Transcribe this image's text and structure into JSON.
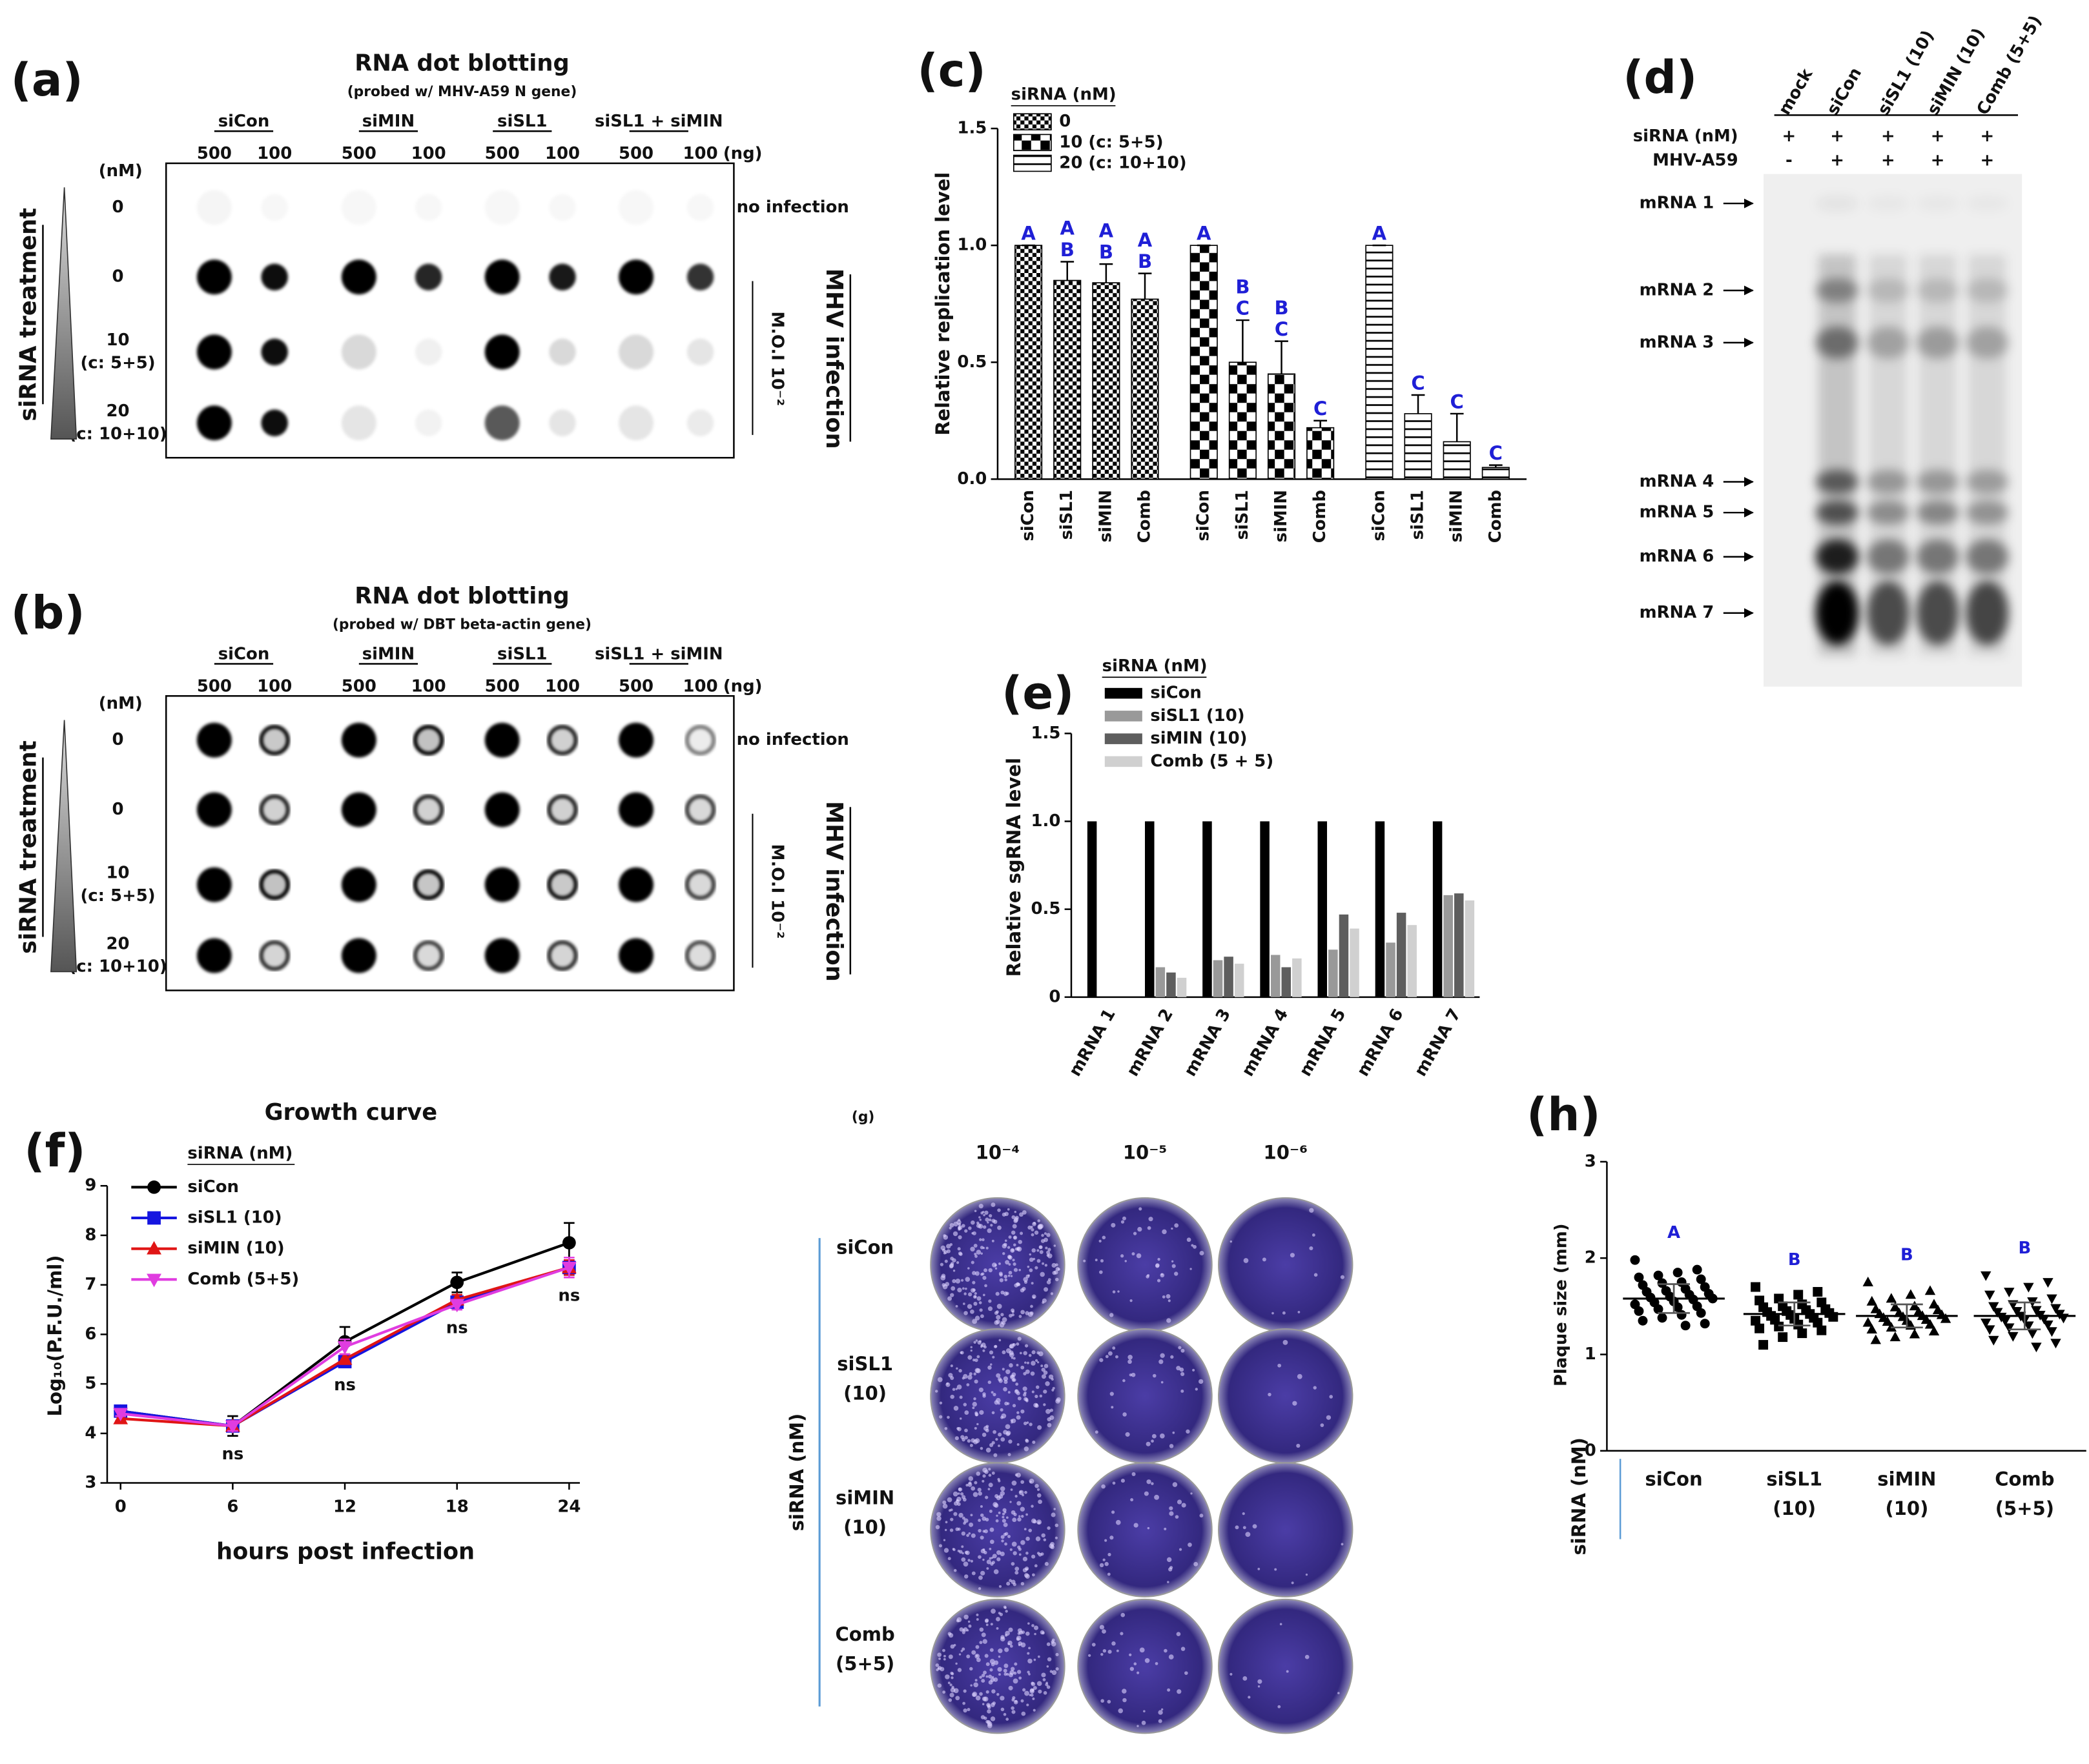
{
  "panel_a": {
    "label": "(a)",
    "title": "RNA dot blotting",
    "subtitle": "(probed w/ MHV-A59 N gene)",
    "groups": [
      "siCon",
      "siMIN",
      "siSL1",
      "siSL1 + siMIN"
    ],
    "amounts": [
      "500",
      "100"
    ],
    "amount_unit": "(ng)",
    "dose_unit": "(nM)",
    "rows": [
      [
        "0"
      ],
      [
        "0"
      ],
      [
        "10",
        "(c: 5+5)"
      ],
      [
        "20",
        "(c: 10+10)"
      ]
    ],
    "no_infection": "no infection",
    "moi": "M.O.I 10⁻²",
    "infection": "MHV infection",
    "treatment": "siRNA treatment"
  },
  "panel_b": {
    "label": "(b)",
    "title": "RNA dot blotting",
    "subtitle": "(probed w/ DBT beta-actin gene)",
    "groups": [
      "siCon",
      "siMIN",
      "siSL1",
      "siSL1 + siMIN"
    ],
    "amounts": [
      "500",
      "100"
    ],
    "amount_unit": "(ng)",
    "dose_unit": "(nM)",
    "rows": [
      [
        "0"
      ],
      [
        "0"
      ],
      [
        "10",
        "(c: 5+5)"
      ],
      [
        "20",
        "(c: 10+10)"
      ]
    ],
    "no_infection": "no infection",
    "moi": "M.O.I 10⁻²",
    "infection": "MHV infection",
    "treatment": "siRNA treatment"
  },
  "panel_d": {
    "label": "(d)",
    "lanes": [
      "mock",
      "siCon",
      "siSL1 (10)",
      "siMIN (10)",
      "Comb (5+5)"
    ],
    "rows": [
      {
        "name": "siRNA (nM)",
        "marks": [
          "+",
          "+",
          "+",
          "+",
          "+"
        ]
      },
      {
        "name": "MHV-A59",
        "marks": [
          "-",
          "+",
          "+",
          "+",
          "+"
        ]
      }
    ],
    "bands": [
      "mRNA 1",
      "mRNA 2",
      "mRNA 3",
      "mRNA 4",
      "mRNA 5",
      "mRNA 6",
      "mRNA 7"
    ]
  },
  "panel_g": {
    "label": "(g)",
    "dilutions": [
      "10⁻⁴",
      "10⁻⁵",
      "10⁻⁶"
    ],
    "rows": [
      [
        "siCon"
      ],
      [
        "siSL1",
        "(10)"
      ],
      [
        "siMIN",
        "(10)"
      ],
      [
        "Comb",
        "(5+5)"
      ]
    ],
    "axis_label": "siRNA (nM)"
  },
  "chart_data": [
    {
      "type": "bar",
      "panel_label": "(c)",
      "ylabel": "Relative replication level",
      "legend_title": "siRNA (nM)",
      "categories": [
        "siCon",
        "siSL1",
        "siMIN",
        "Comb"
      ],
      "letter_color": "#1f1fd6",
      "ylim": [
        0,
        1.5
      ],
      "yticks": [
        {
          "value": 0,
          "label": "0.0"
        },
        {
          "value": 0.5,
          "label": "0.5"
        },
        {
          "value": 1,
          "label": "1.0"
        },
        {
          "value": 1.5,
          "label": "1.5"
        }
      ],
      "series": [
        {
          "name": "0",
          "pattern": "checker-small",
          "values": [
            1.0,
            0.85,
            0.84,
            0.77
          ],
          "errors": [
            0,
            0.08,
            0.08,
            0.11
          ],
          "letters": [
            [
              "A"
            ],
            [
              "A",
              "B"
            ],
            [
              "A",
              "B"
            ],
            [
              "A",
              "B"
            ]
          ]
        },
        {
          "name": "10 (c: 5+5)",
          "pattern": "checker-large",
          "values": [
            1.0,
            0.5,
            0.45,
            0.22
          ],
          "errors": [
            0,
            0.18,
            0.14,
            0.03
          ],
          "letters": [
            [
              "A"
            ],
            [
              "B",
              "C"
            ],
            [
              "B",
              "C"
            ],
            [
              "C"
            ]
          ]
        },
        {
          "name": "20 (c: 10+10)",
          "pattern": "hstripes",
          "values": [
            1.0,
            0.28,
            0.16,
            0.05
          ],
          "errors": [
            0,
            0.08,
            0.12,
            0.01
          ],
          "letters": [
            [
              "A"
            ],
            [
              "C"
            ],
            [
              "C"
            ],
            [
              "C"
            ]
          ]
        }
      ]
    },
    {
      "type": "bar",
      "panel_label": "(e)",
      "ylabel": "Relative sgRNA level",
      "legend_title": "siRNA (nM)",
      "categories": [
        "mRNA 1",
        "mRNA 2",
        "mRNA 3",
        "mRNA 4",
        "mRNA 5",
        "mRNA 6",
        "mRNA 7"
      ],
      "ylim": [
        0,
        1.5
      ],
      "yticks": [
        0,
        0.5,
        {
          "value": 1,
          "label": "1.0"
        },
        1.5
      ],
      "series": [
        {
          "name": "siCon",
          "color": "#000000",
          "values": [
            1,
            1,
            1,
            1,
            1,
            1,
            1
          ]
        },
        {
          "name": "siSL1 (10)",
          "color": "#999999",
          "values": [
            0,
            0.17,
            0.21,
            0.24,
            0.27,
            0.31,
            0.58
          ]
        },
        {
          "name": "siMIN (10)",
          "color": "#5e5e5e",
          "values": [
            0,
            0.14,
            0.23,
            0.17,
            0.47,
            0.48,
            0.59
          ]
        },
        {
          "name": "Comb (5 + 5)",
          "color": "#d0d0d0",
          "values": [
            0,
            0.11,
            0.19,
            0.22,
            0.39,
            0.41,
            0.55
          ]
        }
      ]
    },
    {
      "type": "line",
      "panel_label": "(f)",
      "title": "Growth curve",
      "xlabel": "hours post infection",
      "ylabel": "Log₁₀(P.F.U./ml)",
      "legend_title": "siRNA (nM)",
      "x": [
        0,
        6,
        12,
        18,
        24
      ],
      "xlim": [
        0,
        24
      ],
      "xticks": [
        0,
        6,
        12,
        18,
        24
      ],
      "ylim": [
        3,
        9
      ],
      "yticks": [
        3,
        4,
        5,
        6,
        7,
        8,
        9
      ],
      "series": [
        {
          "name": "siCon",
          "color": "#000000",
          "marker": "circle",
          "values": [
            4.45,
            4.15,
            5.85,
            7.05,
            7.85
          ],
          "errors": [
            0.05,
            0.2,
            0.3,
            0.2,
            0.4
          ]
        },
        {
          "name": "siSL1 (10)",
          "color": "#1515e0",
          "marker": "square",
          "values": [
            4.45,
            4.15,
            5.45,
            6.65,
            7.35
          ],
          "errors": [
            0.05,
            0.1,
            0.1,
            0.1,
            0.15
          ]
        },
        {
          "name": "siMIN (10)",
          "color": "#e01515",
          "marker": "triangle",
          "values": [
            4.3,
            4.15,
            5.5,
            6.7,
            7.35
          ],
          "errors": [
            0.05,
            0.1,
            0.1,
            0.1,
            0.15
          ]
        },
        {
          "name": "Comb (5+5)",
          "color": "#e03ce0",
          "marker": "triangle-down",
          "values": [
            4.4,
            4.15,
            5.75,
            6.6,
            7.35
          ],
          "errors": [
            0.05,
            0.1,
            0.15,
            0.1,
            0.2
          ]
        }
      ],
      "annotations": [
        {
          "x": 6,
          "text": "ns"
        },
        {
          "x": 12,
          "text": "ns"
        },
        {
          "x": 18,
          "text": "ns"
        },
        {
          "x": 24,
          "text": "ns"
        }
      ]
    },
    {
      "type": "dotplot",
      "panel_label": "(h)",
      "ylabel": "Plaque size (mm)",
      "side_label": "siRNA (nM)",
      "letter_color": "#1f1fd6",
      "categories": [
        [
          "siCon"
        ],
        [
          "siSL1",
          "(10)"
        ],
        [
          "siMIN",
          "(10)"
        ],
        [
          "Comb",
          "(5+5)"
        ]
      ],
      "ylim": [
        0,
        3
      ],
      "yticks": [
        0,
        1,
        2,
        3
      ],
      "groups": [
        {
          "marker": "circle",
          "letter": "A",
          "mean": 1.58,
          "sd": 0.15,
          "values": [
            1.98,
            1.88,
            1.85,
            1.82,
            1.8,
            1.78,
            1.75,
            1.74,
            1.72,
            1.7,
            1.68,
            1.66,
            1.65,
            1.63,
            1.62,
            1.6,
            1.59,
            1.58,
            1.57,
            1.55,
            1.54,
            1.52,
            1.5,
            1.49,
            1.47,
            1.45,
            1.43,
            1.41,
            1.38,
            1.35,
            1.32,
            1.3
          ]
        },
        {
          "marker": "square",
          "letter": "B",
          "mean": 1.42,
          "sd": 0.12,
          "values": [
            1.7,
            1.65,
            1.62,
            1.58,
            1.56,
            1.54,
            1.52,
            1.5,
            1.49,
            1.47,
            1.46,
            1.45,
            1.44,
            1.43,
            1.42,
            1.41,
            1.4,
            1.39,
            1.38,
            1.37,
            1.36,
            1.35,
            1.33,
            1.31,
            1.29,
            1.27,
            1.25,
            1.22,
            1.18,
            1.1
          ]
        },
        {
          "marker": "triangle",
          "letter": "B",
          "mean": 1.4,
          "sd": 0.12,
          "values": [
            1.75,
            1.66,
            1.62,
            1.58,
            1.55,
            1.52,
            1.5,
            1.49,
            1.47,
            1.46,
            1.44,
            1.43,
            1.42,
            1.41,
            1.4,
            1.39,
            1.38,
            1.37,
            1.36,
            1.35,
            1.34,
            1.33,
            1.31,
            1.3,
            1.28,
            1.26,
            1.24,
            1.21,
            1.18,
            1.15
          ]
        },
        {
          "marker": "triangle-down",
          "letter": "B",
          "mean": 1.4,
          "sd": 0.14,
          "values": [
            1.82,
            1.75,
            1.7,
            1.65,
            1.62,
            1.58,
            1.55,
            1.52,
            1.5,
            1.48,
            1.46,
            1.45,
            1.44,
            1.42,
            1.41,
            1.4,
            1.39,
            1.38,
            1.37,
            1.36,
            1.35,
            1.33,
            1.31,
            1.3,
            1.28,
            1.26,
            1.24,
            1.22,
            1.19,
            1.15,
            1.12,
            1.08
          ]
        }
      ]
    }
  ]
}
